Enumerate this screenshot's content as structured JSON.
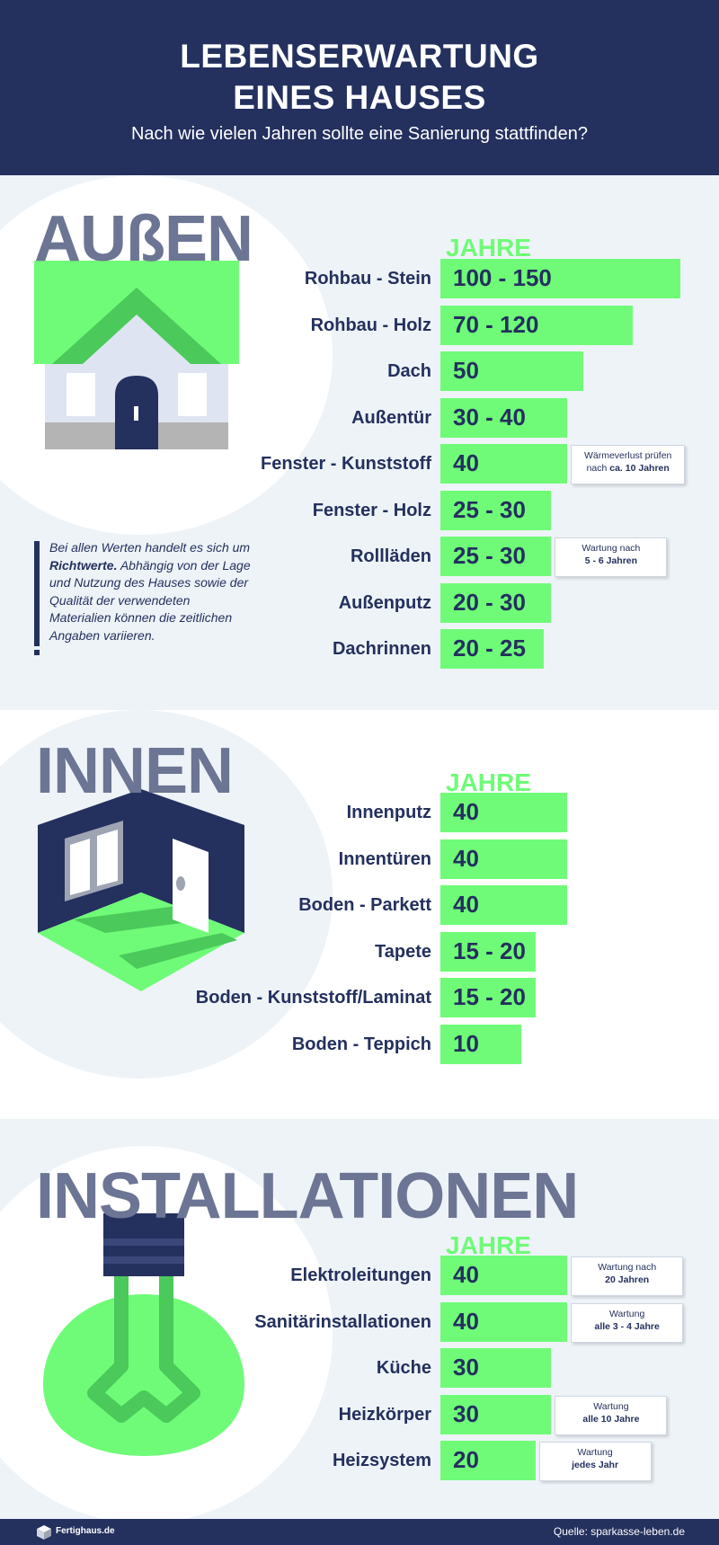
{
  "header": {
    "title_line1": "LEBENSERWARTUNG",
    "title_line2": "EINES HAUSES",
    "subtitle": "Nach wie vielen Jahren sollte eine Sanierung stattfinden?"
  },
  "colors": {
    "navy": "#24305e",
    "green": "#6ffb78",
    "gray": "#6c7593",
    "light_bg": "#eef3f8"
  },
  "disclaimer": {
    "part1": "Bei allen Werten handelt es sich um ",
    "bold": "Richtwerte.",
    "part2": " Abhängig von der Lage und Nutzung des Hauses sowie der Qualität der verwendeten Materialien können die zeitlichen Angaben variieren."
  },
  "footer": {
    "logo": "Fertighaus.de",
    "source": "Quelle: sparkasse-leben.de"
  },
  "chart_data": [
    {
      "type": "bar",
      "title": "AUßEN",
      "ylabel": "JAHRE",
      "categories": [
        "Rohbau - Stein",
        "Rohbau - Holz",
        "Dach",
        "Außentür",
        "Fenster - Kunststoff",
        "Fenster - Holz",
        "Rollläden",
        "Außenputz",
        "Dachrinnen"
      ],
      "values": [
        150,
        120,
        50,
        40,
        40,
        30,
        30,
        30,
        25
      ],
      "labels": [
        "100 - 150",
        "70 - 120",
        "50",
        "30 - 40",
        "40",
        "25 - 30",
        "25 - 30",
        "20 - 30",
        "20 - 25"
      ],
      "notes": [
        {
          "index": 4,
          "text": "Wärmeverlust prüfen nach ",
          "bold": "ca. 10 Jahren"
        },
        {
          "index": 6,
          "text": "Wartung nach",
          "bold": "5 - 6 Jahren"
        }
      ]
    },
    {
      "type": "bar",
      "title": "INNEN",
      "ylabel": "JAHRE",
      "categories": [
        "Innenputz",
        "Innentüren",
        "Boden - Parkett",
        "Tapete",
        "Boden - Kunststoff/Laminat",
        "Boden - Teppich"
      ],
      "values": [
        40,
        40,
        40,
        20,
        20,
        10
      ],
      "labels": [
        "40",
        "40",
        "40",
        "15 - 20",
        "15 - 20",
        "10"
      ],
      "notes": []
    },
    {
      "type": "bar",
      "title": "INSTALLATIONEN",
      "ylabel": "JAHRE",
      "categories": [
        "Elektroleitungen",
        "Sanitärinstallationen",
        "Küche",
        "Heizkörper",
        "Heizsystem"
      ],
      "values": [
        40,
        40,
        30,
        30,
        20
      ],
      "labels": [
        "40",
        "40",
        "30",
        "30",
        "20"
      ],
      "notes": [
        {
          "index": 0,
          "text": "Wartung nach",
          "bold": "20 Jahren"
        },
        {
          "index": 1,
          "text": "Wartung",
          "bold": "alle 3 - 4 Jahre"
        },
        {
          "index": 3,
          "text": "Wartung",
          "bold": "alle 10 Jahre"
        },
        {
          "index": 4,
          "text": "Wartung",
          "bold": "jedes Jahr"
        }
      ]
    }
  ]
}
